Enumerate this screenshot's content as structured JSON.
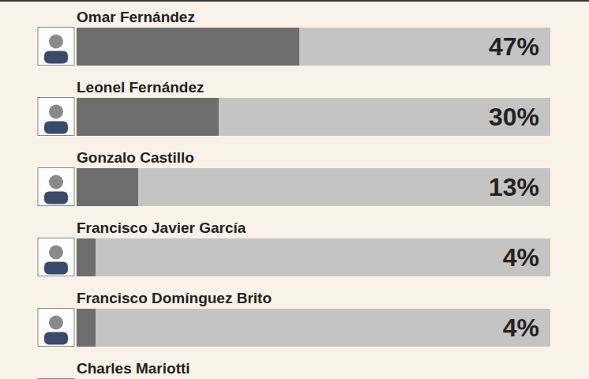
{
  "chart_data": {
    "type": "bar",
    "orientation": "horizontal",
    "categories": [
      "Omar Fernández",
      "Leonel Fernández",
      "Gonzalo Castillo",
      "Francisco Javier García",
      "Francisco Domínguez Brito",
      "Charles Mariotti"
    ],
    "values": [
      47,
      30,
      13,
      4,
      4,
      null
    ],
    "value_labels": [
      "47%",
      "30%",
      "13%",
      "4%",
      "4%",
      null
    ],
    "xlim": [
      0,
      100
    ],
    "color": "#6e6e6e",
    "data_labels": true,
    "tick_labels": false,
    "grid": false
  }
}
